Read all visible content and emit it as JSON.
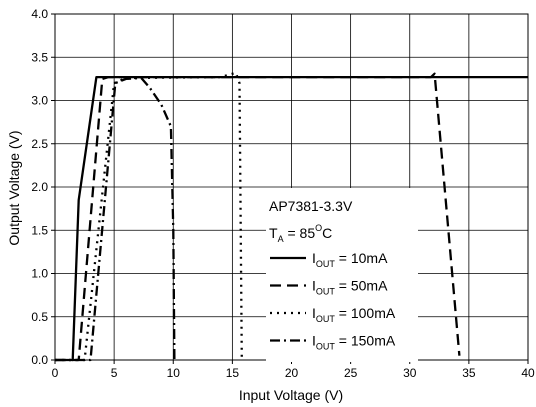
{
  "chart_data": {
    "type": "line",
    "title": "",
    "xlabel": "Input Voltage (V)",
    "ylabel": "Output Voltage (V)",
    "xlim": [
      0,
      40
    ],
    "ylim": [
      0,
      4.0
    ],
    "x_ticks": [
      "0",
      "5",
      "10",
      "15",
      "20",
      "25",
      "30",
      "35",
      "40"
    ],
    "y_ticks": [
      "0.0",
      "0.5",
      "1.0",
      "1.5",
      "2.0",
      "2.5",
      "3.0",
      "3.5",
      "4.0"
    ],
    "grid": true,
    "legend_position": "lower-right",
    "legend": {
      "device": "AP7381-3.3V",
      "temp_main": "T",
      "temp_sub": "A",
      "temp_rest": " = 85",
      "temp_sup": "O",
      "temp_unit": "C"
    },
    "series": [
      {
        "name": "10mA",
        "label_main": "I",
        "label_sub": "OUT",
        "label_rest": " = 10mA",
        "dash": "solid",
        "x": [
          0,
          1.5,
          2.0,
          3.5,
          40
        ],
        "y": [
          0,
          0,
          1.85,
          3.27,
          3.27
        ]
      },
      {
        "name": "50mA",
        "label_main": "I",
        "label_sub": "OUT",
        "label_rest": " = 50mA",
        "dash": "dash",
        "x": [
          0,
          2.0,
          4.0,
          4.5,
          31.8,
          32.1,
          34.2
        ],
        "y": [
          0,
          0,
          3.25,
          3.27,
          3.27,
          3.31,
          0.05
        ]
      },
      {
        "name": "100mA",
        "label_main": "I",
        "label_sub": "OUT",
        "label_rest": " = 100mA",
        "dash": "dot",
        "x": [
          0,
          2.5,
          5.0,
          6.0,
          14.0,
          15.3,
          15.6,
          15.8
        ],
        "y": [
          0,
          0,
          3.2,
          3.26,
          3.27,
          3.32,
          3.2,
          0
        ]
      },
      {
        "name": "150mA",
        "label_main": "I",
        "label_sub": "OUT",
        "label_rest": " = 150mA",
        "dash": "dashdot",
        "x": [
          0,
          3.0,
          5.1,
          6.0,
          7.3,
          8.0,
          9.0,
          9.8,
          10.0,
          10.1
        ],
        "y": [
          0,
          0,
          3.2,
          3.25,
          3.26,
          3.15,
          2.95,
          2.7,
          1.5,
          0
        ]
      }
    ]
  }
}
